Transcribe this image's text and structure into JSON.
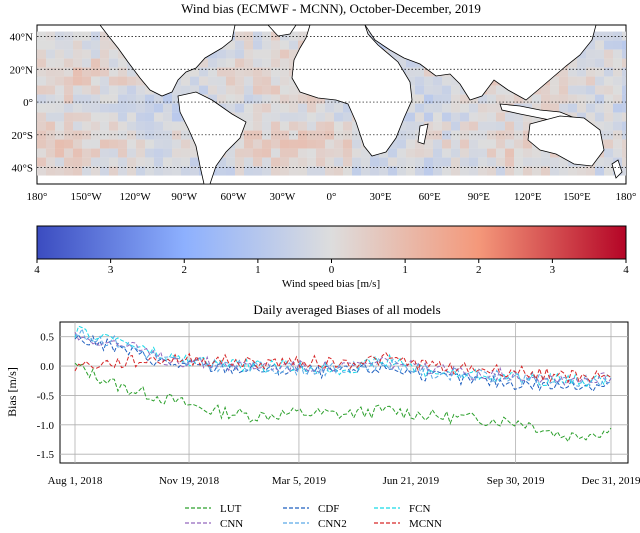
{
  "chart_data": [
    {
      "type": "heatmap",
      "title": "Wind bias (ECMWF - MCNN), October-December, 2019",
      "x_ticks": [
        "180°",
        "150°W",
        "120°W",
        "90°W",
        "60°W",
        "30°W",
        "0°",
        "30°E",
        "60°E",
        "90°E",
        "120°E",
        "150°E",
        "180°"
      ],
      "y_ticks": [
        "40°N",
        "20°N",
        "0°",
        "20°S",
        "40°S"
      ],
      "x_range": [
        -180,
        180
      ],
      "y_range": [
        -50,
        47
      ],
      "data_extent_lat": [
        -43,
        43
      ],
      "colorbar": {
        "label": "Wind speed bias [m/s]",
        "tick_labels": [
          "4",
          "3",
          "2",
          "1",
          "0",
          "1",
          "2",
          "3",
          "4"
        ],
        "range": [
          -4,
          4
        ],
        "colors": [
          "#3b4cc0",
          "#8db0fe",
          "#dddddd",
          "#f4987a",
          "#b40426"
        ]
      }
    },
    {
      "type": "line",
      "title": "Daily averaged Biases of all models",
      "ylabel": "Bias [m/s]",
      "xlabel": "",
      "x_ticks": [
        "Aug 1, 2018",
        "Nov 19, 2018",
        "Mar 5, 2019",
        "Jun 21, 2019",
        "Sep 30, 2019",
        "Dec 31, 2019"
      ],
      "y_ticks": [
        "0.5",
        "0.0",
        "-0.5",
        "-1.0",
        "-1.5"
      ],
      "ylim": [
        -1.65,
        0.75
      ],
      "grid": true,
      "legend_position": "bottom",
      "dates": [
        "2018-08-01",
        "2018-09-15",
        "2018-11-01",
        "2018-12-15",
        "2019-02-01",
        "2019-03-15",
        "2019-05-01",
        "2019-06-15",
        "2019-08-01",
        "2019-09-15",
        "2019-11-01",
        "2019-12-15",
        "2019-12-31"
      ],
      "series": [
        {
          "name": "LUT",
          "color": "#2ca02c",
          "dash": "4,2",
          "values": [
            0.0,
            -0.35,
            -0.55,
            -0.75,
            -0.85,
            -0.8,
            -0.82,
            -0.75,
            -0.85,
            -0.9,
            -0.95,
            -1.2,
            -1.1
          ]
        },
        {
          "name": "CDF",
          "color": "#1f5fbf",
          "dash": "4,2",
          "values": [
            0.48,
            0.3,
            0.05,
            -0.02,
            -0.05,
            -0.08,
            -0.1,
            -0.02,
            -0.18,
            -0.25,
            -0.3,
            -0.35,
            -0.3
          ]
        },
        {
          "name": "FCN",
          "color": "#17d9e8",
          "dash": "4,2",
          "values": [
            0.58,
            0.45,
            0.15,
            0.05,
            0.0,
            -0.02,
            -0.05,
            0.1,
            -0.1,
            -0.15,
            -0.2,
            -0.25,
            -0.22
          ]
        },
        {
          "name": "CNN",
          "color": "#9467bd",
          "dash": "4,2",
          "values": [
            0.52,
            0.38,
            0.12,
            0.05,
            0.0,
            0.0,
            -0.02,
            0.08,
            -0.08,
            -0.12,
            -0.15,
            -0.22,
            -0.2
          ]
        },
        {
          "name": "CNN2",
          "color": "#5aa9e6",
          "dash": "4,2",
          "values": [
            0.55,
            0.4,
            0.1,
            0.02,
            -0.02,
            -0.04,
            -0.06,
            0.06,
            -0.12,
            -0.16,
            -0.2,
            -0.28,
            -0.24
          ]
        },
        {
          "name": "MCNN",
          "color": "#d62728",
          "dash": "4,2",
          "values": [
            0.0,
            0.05,
            0.12,
            0.1,
            0.05,
            0.08,
            0.05,
            0.12,
            0.0,
            -0.05,
            -0.1,
            -0.18,
            -0.15
          ]
        }
      ]
    }
  ]
}
